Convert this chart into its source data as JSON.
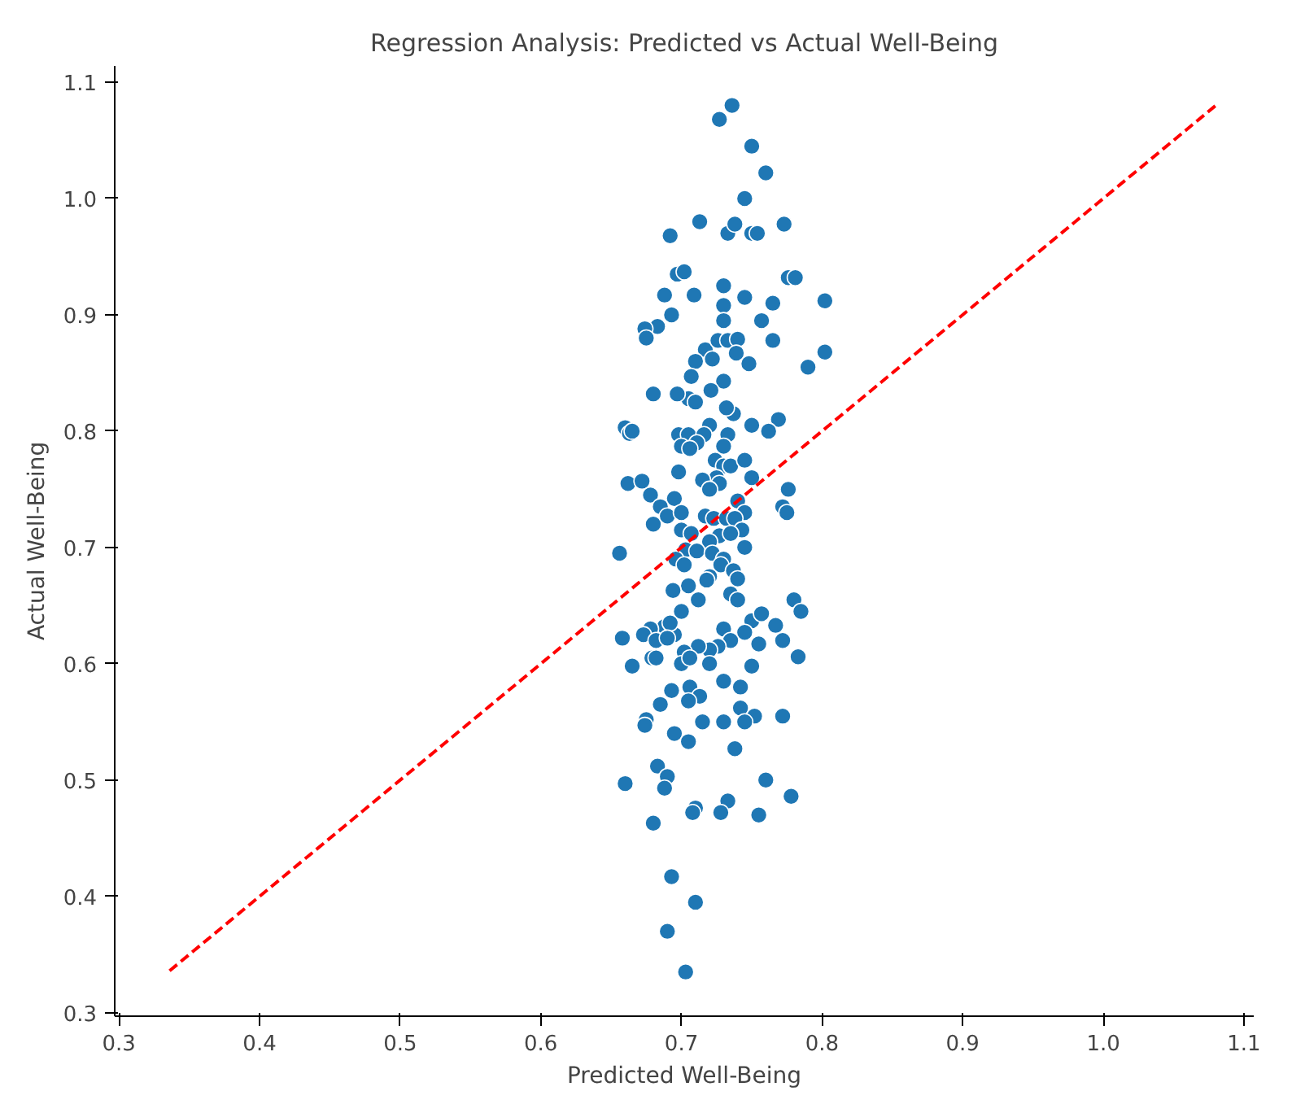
{
  "chart_data": {
    "type": "scatter",
    "title": "Regression Analysis: Predicted vs Actual Well-Being",
    "xlabel": "Predicted Well-Being",
    "ylabel": "Actual Well-Being",
    "xlim": [
      0.297,
      1.107
    ],
    "ylim": [
      0.297,
      1.114
    ],
    "xticks": [
      {
        "value": 0.3,
        "label": "0.3"
      },
      {
        "value": 0.4,
        "label": "0.4"
      },
      {
        "value": 0.5,
        "label": "0.5"
      },
      {
        "value": 0.6,
        "label": "0.6"
      },
      {
        "value": 0.7,
        "label": "0.7"
      },
      {
        "value": 0.8,
        "label": "0.8"
      },
      {
        "value": 0.9,
        "label": "0.9"
      },
      {
        "value": 1.0,
        "label": "1.0"
      },
      {
        "value": 1.1,
        "label": "1.1"
      }
    ],
    "yticks": [
      {
        "value": 0.3,
        "label": "0.3"
      },
      {
        "value": 0.4,
        "label": "0.4"
      },
      {
        "value": 0.5,
        "label": "0.5"
      },
      {
        "value": 0.6,
        "label": "0.6"
      },
      {
        "value": 0.7,
        "label": "0.7"
      },
      {
        "value": 0.8,
        "label": "0.8"
      },
      {
        "value": 0.9,
        "label": "0.9"
      },
      {
        "value": 1.0,
        "label": "1.0"
      },
      {
        "value": 1.1,
        "label": "1.1"
      }
    ],
    "grid": false,
    "marker": "circle",
    "series": [
      {
        "color": "#1f77b4",
        "x": [
          0.736,
          0.727,
          0.75,
          0.76,
          0.745,
          0.733,
          0.713,
          0.738,
          0.75,
          0.754,
          0.692,
          0.773,
          0.697,
          0.702,
          0.73,
          0.745,
          0.776,
          0.781,
          0.802,
          0.709,
          0.688,
          0.73,
          0.765,
          0.693,
          0.683,
          0.674,
          0.675,
          0.73,
          0.757,
          0.717,
          0.726,
          0.733,
          0.74,
          0.765,
          0.722,
          0.739,
          0.748,
          0.71,
          0.802,
          0.79,
          0.707,
          0.73,
          0.721,
          0.705,
          0.71,
          0.697,
          0.68,
          0.737,
          0.732,
          0.72,
          0.769,
          0.75,
          0.762,
          0.66,
          0.663,
          0.665,
          0.698,
          0.705,
          0.716,
          0.733,
          0.711,
          0.7,
          0.706,
          0.73,
          0.724,
          0.73,
          0.735,
          0.745,
          0.725,
          0.698,
          0.715,
          0.727,
          0.75,
          0.662,
          0.672,
          0.776,
          0.678,
          0.72,
          0.695,
          0.685,
          0.74,
          0.772,
          0.775,
          0.745,
          0.68,
          0.69,
          0.7,
          0.717,
          0.723,
          0.732,
          0.738,
          0.743,
          0.7,
          0.707,
          0.727,
          0.735,
          0.72,
          0.745,
          0.656,
          0.703,
          0.711,
          0.722,
          0.73,
          0.696,
          0.702,
          0.728,
          0.737,
          0.72,
          0.74,
          0.705,
          0.694,
          0.718,
          0.735,
          0.78,
          0.785,
          0.7,
          0.712,
          0.74,
          0.75,
          0.757,
          0.767,
          0.772,
          0.755,
          0.745,
          0.73,
          0.735,
          0.726,
          0.72,
          0.712,
          0.702,
          0.7,
          0.706,
          0.695,
          0.688,
          0.692,
          0.678,
          0.673,
          0.682,
          0.69,
          0.658,
          0.665,
          0.679,
          0.682,
          0.783,
          0.72,
          0.75,
          0.73,
          0.742,
          0.706,
          0.693,
          0.713,
          0.705,
          0.685,
          0.742,
          0.752,
          0.772,
          0.675,
          0.674,
          0.715,
          0.73,
          0.745,
          0.695,
          0.705,
          0.738,
          0.683,
          0.69,
          0.66,
          0.688,
          0.76,
          0.778,
          0.733,
          0.71,
          0.708,
          0.728,
          0.755,
          0.68,
          0.693,
          0.71,
          0.69,
          0.703
        ],
        "values": [
          1.08,
          1.068,
          1.045,
          1.022,
          1.0,
          0.97,
          0.98,
          0.978,
          0.97,
          0.97,
          0.968,
          0.978,
          0.935,
          0.937,
          0.925,
          0.915,
          0.932,
          0.932,
          0.912,
          0.917,
          0.917,
          0.908,
          0.91,
          0.9,
          0.89,
          0.888,
          0.88,
          0.895,
          0.895,
          0.87,
          0.878,
          0.878,
          0.879,
          0.878,
          0.862,
          0.867,
          0.858,
          0.86,
          0.868,
          0.855,
          0.847,
          0.843,
          0.835,
          0.828,
          0.825,
          0.832,
          0.832,
          0.815,
          0.82,
          0.805,
          0.81,
          0.805,
          0.8,
          0.803,
          0.798,
          0.8,
          0.797,
          0.797,
          0.797,
          0.797,
          0.79,
          0.787,
          0.785,
          0.787,
          0.775,
          0.77,
          0.77,
          0.775,
          0.76,
          0.765,
          0.758,
          0.755,
          0.76,
          0.755,
          0.757,
          0.75,
          0.745,
          0.75,
          0.742,
          0.735,
          0.74,
          0.735,
          0.73,
          0.73,
          0.72,
          0.727,
          0.73,
          0.727,
          0.725,
          0.725,
          0.725,
          0.715,
          0.715,
          0.712,
          0.71,
          0.712,
          0.705,
          0.7,
          0.695,
          0.698,
          0.697,
          0.695,
          0.69,
          0.69,
          0.685,
          0.685,
          0.68,
          0.675,
          0.673,
          0.667,
          0.663,
          0.672,
          0.66,
          0.655,
          0.645,
          0.645,
          0.655,
          0.655,
          0.637,
          0.643,
          0.633,
          0.62,
          0.617,
          0.627,
          0.63,
          0.62,
          0.615,
          0.612,
          0.615,
          0.61,
          0.6,
          0.605,
          0.625,
          0.632,
          0.635,
          0.63,
          0.625,
          0.62,
          0.622,
          0.622,
          0.598,
          0.605,
          0.605,
          0.606,
          0.6,
          0.598,
          0.585,
          0.58,
          0.58,
          0.577,
          0.572,
          0.568,
          0.565,
          0.562,
          0.555,
          0.555,
          0.552,
          0.547,
          0.55,
          0.55,
          0.55,
          0.54,
          0.533,
          0.527,
          0.512,
          0.503,
          0.497,
          0.493,
          0.5,
          0.486,
          0.482,
          0.476,
          0.472,
          0.472,
          0.47,
          0.463,
          0.417,
          0.395,
          0.37,
          0.335
        ]
      },
      {
        "type": "line",
        "color": "#ff0000",
        "line_style": "dashed",
        "marker": "none",
        "x": [
          0.336,
          1.08
        ],
        "values": [
          0.336,
          1.08
        ]
      }
    ]
  }
}
